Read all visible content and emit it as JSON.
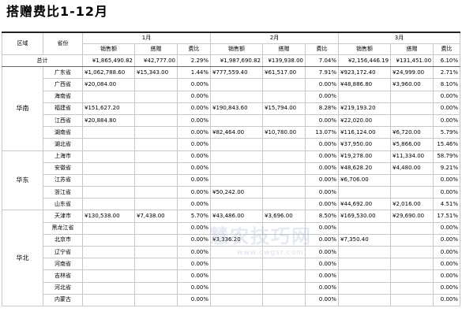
{
  "title": "搭赠费比1-12月",
  "headers": {
    "region": "区域",
    "province": "省份",
    "months": [
      "1月",
      "2月",
      "3月"
    ],
    "sub": [
      "销售额",
      "搭赠",
      "费比"
    ]
  },
  "total": {
    "label": "总计",
    "months": [
      {
        "sales": "¥1,865,490.82",
        "gift": "¥42,777.00",
        "ratio": "2.29%"
      },
      {
        "sales": "¥1,987,690.82",
        "gift": "¥139,938.00",
        "ratio": "7.04%"
      },
      {
        "sales": "¥2,156,446.19",
        "gift": "¥131,451.00",
        "ratio": "6.10%"
      }
    ]
  },
  "regions": [
    {
      "name": "华南",
      "rows": [
        {
          "province": "广东省",
          "months": [
            {
              "sales": "¥1,062,788.60",
              "gift": "¥15,343.00",
              "ratio": "1.44%"
            },
            {
              "sales": "¥777,559.40",
              "gift": "¥61,517.00",
              "ratio": "7.91%"
            },
            {
              "sales": "¥923,172.40",
              "gift": "¥24,999.00",
              "ratio": "2.71%"
            }
          ]
        },
        {
          "province": "广西省",
          "months": [
            {
              "sales": "¥20,084.00",
              "gift": "",
              "ratio": "0.00%"
            },
            {
              "sales": "",
              "gift": "",
              "ratio": "0.00%"
            },
            {
              "sales": "¥48,886.80",
              "gift": "¥3,960.00",
              "ratio": "8.10%"
            }
          ]
        },
        {
          "province": "海南省",
          "months": [
            {
              "sales": "",
              "gift": "",
              "ratio": "0.00%"
            },
            {
              "sales": "",
              "gift": "",
              "ratio": "0.00%"
            },
            {
              "sales": "",
              "gift": "",
              "ratio": "0.00%"
            }
          ]
        },
        {
          "province": "福建省",
          "months": [
            {
              "sales": "¥151,627.20",
              "gift": "",
              "ratio": "0.00%"
            },
            {
              "sales": "¥190,843.60",
              "gift": "¥15,794.00",
              "ratio": "8.28%"
            },
            {
              "sales": "¥219,193.20",
              "gift": "",
              "ratio": "0.00%"
            }
          ]
        },
        {
          "province": "江西省",
          "months": [
            {
              "sales": "¥20,884.80",
              "gift": "",
              "ratio": "0.00%"
            },
            {
              "sales": "",
              "gift": "",
              "ratio": "0.00%"
            },
            {
              "sales": "¥22,020.00",
              "gift": "",
              "ratio": "0.00%"
            }
          ]
        },
        {
          "province": "湖南省",
          "months": [
            {
              "sales": "",
              "gift": "",
              "ratio": "0.00%"
            },
            {
              "sales": "¥82,464.00",
              "gift": "¥10,780.00",
              "ratio": "13.07%"
            },
            {
              "sales": "¥116,124.00",
              "gift": "¥6,720.00",
              "ratio": "5.79%"
            }
          ]
        },
        {
          "province": "湖北省",
          "months": [
            {
              "sales": "",
              "gift": "",
              "ratio": "0.00%"
            },
            {
              "sales": "",
              "gift": "",
              "ratio": "0.00%"
            },
            {
              "sales": "¥37,950.00",
              "gift": "¥5,866.00",
              "ratio": "15.46%"
            }
          ]
        }
      ]
    },
    {
      "name": "华东",
      "rows": [
        {
          "province": "上海市",
          "months": [
            {
              "sales": "",
              "gift": "",
              "ratio": "0.00%"
            },
            {
              "sales": "",
              "gift": "",
              "ratio": "0.00%"
            },
            {
              "sales": "¥19,278.00",
              "gift": "¥11,334.00",
              "ratio": "58.79%"
            }
          ]
        },
        {
          "province": "安徽省",
          "months": [
            {
              "sales": "",
              "gift": "",
              "ratio": "0.00%"
            },
            {
              "sales": "",
              "gift": "",
              "ratio": "0.00%"
            },
            {
              "sales": "¥48,628.20",
              "gift": "¥4,480.00",
              "ratio": "9.21%"
            }
          ]
        },
        {
          "province": "江苏省",
          "months": [
            {
              "sales": "",
              "gift": "",
              "ratio": "0.00%"
            },
            {
              "sales": "",
              "gift": "",
              "ratio": "0.00%"
            },
            {
              "sales": "¥6,706.00",
              "gift": "",
              "ratio": "0.00%"
            }
          ]
        },
        {
          "province": "浙江省",
          "months": [
            {
              "sales": "",
              "gift": "",
              "ratio": "0.00%"
            },
            {
              "sales": "¥50,242.00",
              "gift": "",
              "ratio": "0.00%"
            },
            {
              "sales": "",
              "gift": "",
              "ratio": "0.00%"
            }
          ]
        },
        {
          "province": "山东省",
          "months": [
            {
              "sales": "",
              "gift": "",
              "ratio": "0.00%"
            },
            {
              "sales": "",
              "gift": "",
              "ratio": "0.00%"
            },
            {
              "sales": "¥44,692.00",
              "gift": "¥2,016.00",
              "ratio": "4.51%"
            }
          ]
        }
      ]
    },
    {
      "name": "华北",
      "rows": [
        {
          "province": "天津市",
          "months": [
            {
              "sales": "¥130,538.00",
              "gift": "¥7,438.00",
              "ratio": "5.70%"
            },
            {
              "sales": "¥43,486.00",
              "gift": "¥3,696.00",
              "ratio": "8.50%"
            },
            {
              "sales": "¥169,530.00",
              "gift": "¥29,690.00",
              "ratio": "17.51%"
            }
          ]
        },
        {
          "province": "黑龙江省",
          "months": [
            {
              "sales": "",
              "gift": "",
              "ratio": "0.00%"
            },
            {
              "sales": "",
              "gift": "",
              "ratio": "0.00%"
            },
            {
              "sales": "",
              "gift": "",
              "ratio": "0.00%"
            }
          ]
        },
        {
          "province": "北京市",
          "months": [
            {
              "sales": "",
              "gift": "",
              "ratio": "0.00%"
            },
            {
              "sales": "¥3,336.20",
              "gift": "",
              "ratio": "0.00%"
            },
            {
              "sales": "¥7,350.40",
              "gift": "",
              "ratio": "0.00%"
            }
          ]
        },
        {
          "province": "辽宁省",
          "months": [
            {
              "sales": "",
              "gift": "",
              "ratio": "0.00%"
            },
            {
              "sales": "",
              "gift": "",
              "ratio": "0.00%"
            },
            {
              "sales": "",
              "gift": "",
              "ratio": "0.00%"
            }
          ]
        },
        {
          "province": "河南省",
          "months": [
            {
              "sales": "",
              "gift": "",
              "ratio": "0.00%"
            },
            {
              "sales": "",
              "gift": "",
              "ratio": "0.00%"
            },
            {
              "sales": "",
              "gift": "",
              "ratio": "0.00%"
            }
          ]
        },
        {
          "province": "吉林省",
          "months": [
            {
              "sales": "",
              "gift": "",
              "ratio": "0.00%"
            },
            {
              "sales": "",
              "gift": "",
              "ratio": "0.00%"
            },
            {
              "sales": "",
              "gift": "",
              "ratio": "0.00%"
            }
          ]
        },
        {
          "province": "河北省",
          "months": [
            {
              "sales": "",
              "gift": "",
              "ratio": "0.00%"
            },
            {
              "sales": "",
              "gift": "",
              "ratio": "0.00%"
            },
            {
              "sales": "",
              "gift": "",
              "ratio": "0.00%"
            }
          ]
        },
        {
          "province": "内蒙古",
          "months": [
            {
              "sales": "",
              "gift": "",
              "ratio": "0.00%"
            },
            {
              "sales": "",
              "gift": "",
              "ratio": "0.00%"
            },
            {
              "sales": "",
              "gift": "",
              "ratio": "0.00%"
            }
          ]
        }
      ]
    }
  ],
  "watermark": {
    "text": "慧农技巧网",
    "url": "www.cwgsr.com"
  }
}
